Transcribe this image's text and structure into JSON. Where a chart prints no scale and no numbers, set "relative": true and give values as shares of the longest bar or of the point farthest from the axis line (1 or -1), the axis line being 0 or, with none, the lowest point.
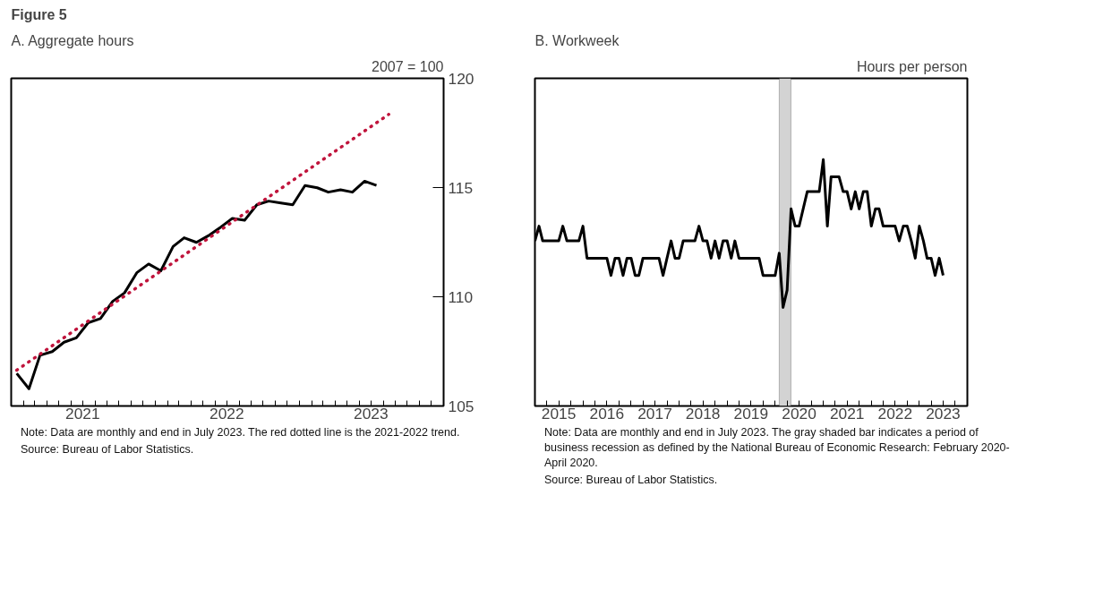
{
  "chart_data": [
    {
      "type": "line",
      "title": "Figure 5",
      "subtitle": "A. Aggregate hours",
      "ylabel": "2007 = 100",
      "series": [
        {
          "color": "#000000",
          "line_style": "solid",
          "x": [
            "2021-01-15",
            "2021-02-15",
            "2021-03-15",
            "2021-04-15",
            "2021-05-15",
            "2021-06-15",
            "2021-07-15",
            "2021-08-15",
            "2021-09-15",
            "2021-10-15",
            "2021-11-15",
            "2021-12-15",
            "2022-01-15",
            "2022-02-15",
            "2022-03-15",
            "2022-04-15",
            "2022-05-15",
            "2022-06-15",
            "2022-07-15",
            "2022-08-15",
            "2022-09-15",
            "2022-10-15",
            "2022-11-15",
            "2022-12-15",
            "2023-01-15",
            "2023-02-15",
            "2023-03-15",
            "2023-04-15",
            "2023-05-15",
            "2023-06-15",
            "2023-07-15"
          ],
          "values": [
            106.49,
            105.79,
            107.32,
            107.49,
            107.92,
            108.12,
            108.81,
            109.0,
            109.79,
            110.18,
            111.1,
            111.5,
            111.19,
            112.3,
            112.7,
            112.49,
            112.79,
            113.18,
            113.59,
            113.5,
            114.21,
            114.38,
            114.29,
            114.21,
            115.09,
            114.99,
            114.79,
            114.9,
            114.79,
            115.29,
            115.1
          ]
        },
        {
          "color": "#c0143c",
          "line_style": "dotted",
          "x": [
            "2021-01-15",
            "2023-08-15"
          ],
          "values": [
            106.64,
            118.35
          ]
        }
      ],
      "xlim": [
        "2021-01-01",
        "2024-01-01"
      ],
      "ylim": [
        105,
        120
      ],
      "yticks": [
        105,
        110,
        115,
        120
      ],
      "xticks": [
        {
          "value": "2021-01-01",
          "label": null
        },
        {
          "value": "2021-02-01",
          "label": null
        },
        {
          "value": "2021-03-01",
          "label": null
        },
        {
          "value": "2021-04-01",
          "label": null
        },
        {
          "value": "2021-05-01",
          "label": null
        },
        {
          "value": "2021-06-01",
          "label": null
        },
        {
          "value": "2021-07-01",
          "label": "2021"
        },
        {
          "value": "2021-08-01",
          "label": null
        },
        {
          "value": "2021-09-01",
          "label": null
        },
        {
          "value": "2021-10-01",
          "label": null
        },
        {
          "value": "2021-11-01",
          "label": null
        },
        {
          "value": "2021-12-01",
          "label": null
        },
        {
          "value": "2022-01-01",
          "label": null
        },
        {
          "value": "2022-02-01",
          "label": null
        },
        {
          "value": "2022-03-01",
          "label": null
        },
        {
          "value": "2022-04-01",
          "label": null
        },
        {
          "value": "2022-05-01",
          "label": null
        },
        {
          "value": "2022-06-01",
          "label": null
        },
        {
          "value": "2022-07-01",
          "label": "2022"
        },
        {
          "value": "2022-08-01",
          "label": null
        },
        {
          "value": "2022-09-01",
          "label": null
        },
        {
          "value": "2022-10-01",
          "label": null
        },
        {
          "value": "2022-11-01",
          "label": null
        },
        {
          "value": "2022-12-01",
          "label": null
        },
        {
          "value": "2023-01-01",
          "label": null
        },
        {
          "value": "2023-02-01",
          "label": null
        },
        {
          "value": "2023-03-01",
          "label": null
        },
        {
          "value": "2023-04-01",
          "label": null
        },
        {
          "value": "2023-05-01",
          "label": null
        },
        {
          "value": "2023-06-01",
          "label": null
        },
        {
          "value": "2023-07-01",
          "label": "2023"
        },
        {
          "value": "2023-08-01",
          "label": null
        },
        {
          "value": "2023-09-01",
          "label": null
        },
        {
          "value": "2023-10-01",
          "label": null
        },
        {
          "value": "2023-11-01",
          "label": null
        },
        {
          "value": "2023-12-01",
          "label": null
        },
        {
          "value": "2024-01-01",
          "label": null
        }
      ],
      "marker": "none",
      "annotations": [
        "Note: Data are monthly and end in July 2023. The red dotted line is the 2021-2022 trend.",
        "Source: Bureau of Labor Statistics."
      ]
    },
    {
      "type": "line",
      "title": "B. Workweek",
      "ylabel": "Hours per person",
      "relative": true,
      "x": [
        "2015-01",
        "2015-02",
        "2015-03",
        "2015-04",
        "2015-05",
        "2015-06",
        "2015-07",
        "2015-08",
        "2015-09",
        "2015-10",
        "2015-11",
        "2015-12",
        "2016-01",
        "2016-02",
        "2016-03",
        "2016-04",
        "2016-05",
        "2016-06",
        "2016-07",
        "2016-08",
        "2016-09",
        "2016-10",
        "2016-11",
        "2016-12",
        "2017-01",
        "2017-02",
        "2017-03",
        "2017-04",
        "2017-05",
        "2017-06",
        "2017-07",
        "2017-08",
        "2017-09",
        "2017-10",
        "2017-11",
        "2017-12",
        "2018-01",
        "2018-02",
        "2018-03",
        "2018-04",
        "2018-05",
        "2018-06",
        "2018-07",
        "2018-08",
        "2018-09",
        "2018-10",
        "2018-11",
        "2018-12",
        "2019-01",
        "2019-02",
        "2019-03",
        "2019-04",
        "2019-05",
        "2019-06",
        "2019-07",
        "2019-08",
        "2019-09",
        "2019-10",
        "2019-11",
        "2019-12",
        "2020-01",
        "2020-02",
        "2020-03",
        "2020-04",
        "2020-05",
        "2020-06",
        "2020-07",
        "2020-08",
        "2020-09",
        "2020-10",
        "2020-11",
        "2020-12",
        "2021-01",
        "2021-02",
        "2021-03",
        "2021-04",
        "2021-05",
        "2021-06",
        "2021-07",
        "2021-08",
        "2021-09",
        "2021-10",
        "2021-11",
        "2021-12",
        "2022-01",
        "2022-02",
        "2022-03",
        "2022-04",
        "2022-05",
        "2022-06",
        "2022-07",
        "2022-08",
        "2022-09",
        "2022-10",
        "2022-11",
        "2022-12",
        "2023-01",
        "2023-02",
        "2023-03",
        "2023-04",
        "2023-05",
        "2023-06",
        "2023-07"
      ],
      "series": [
        {
          "color": "#000000",
          "line_style": "solid",
          "values": [
            0.67,
            0.73,
            0.67,
            0.67,
            0.67,
            0.67,
            0.67,
            0.73,
            0.67,
            0.67,
            0.67,
            0.67,
            0.73,
            0.6,
            0.6,
            0.6,
            0.6,
            0.6,
            0.6,
            0.53,
            0.6,
            0.6,
            0.53,
            0.6,
            0.6,
            0.53,
            0.53,
            0.6,
            0.6,
            0.6,
            0.6,
            0.6,
            0.53,
            0.6,
            0.67,
            0.6,
            0.6,
            0.67,
            0.67,
            0.67,
            0.67,
            0.73,
            0.67,
            0.67,
            0.6,
            0.67,
            0.6,
            0.67,
            0.67,
            0.6,
            0.67,
            0.6,
            0.6,
            0.6,
            0.6,
            0.6,
            0.6,
            0.53,
            0.53,
            0.53,
            0.53,
            0.62,
            0.4,
            0.47,
            0.8,
            0.73,
            0.73,
            0.8,
            0.87,
            0.87,
            0.87,
            0.87,
            1.0,
            0.73,
            0.93,
            0.93,
            0.93,
            0.87,
            0.87,
            0.8,
            0.87,
            0.8,
            0.87,
            0.87,
            0.73,
            0.8,
            0.8,
            0.73,
            0.73,
            0.73,
            0.73,
            0.67,
            0.73,
            0.73,
            0.67,
            0.6,
            0.73,
            0.67,
            0.6,
            0.6,
            0.53,
            0.6,
            0.53
          ]
        }
      ],
      "xlim": [
        "2015-01-01",
        "2024-01-01"
      ],
      "xticks": [
        {
          "value": "2015-01-01",
          "label": null
        },
        {
          "value": "2015-04-01",
          "label": null
        },
        {
          "value": "2015-07-01",
          "label": "2015"
        },
        {
          "value": "2015-10-01",
          "label": null
        },
        {
          "value": "2016-01-01",
          "label": null
        },
        {
          "value": "2016-04-01",
          "label": null
        },
        {
          "value": "2016-07-01",
          "label": "2016"
        },
        {
          "value": "2016-10-01",
          "label": null
        },
        {
          "value": "2017-01-01",
          "label": null
        },
        {
          "value": "2017-04-01",
          "label": null
        },
        {
          "value": "2017-07-01",
          "label": "2017"
        },
        {
          "value": "2017-10-01",
          "label": null
        },
        {
          "value": "2018-01-01",
          "label": null
        },
        {
          "value": "2018-04-01",
          "label": null
        },
        {
          "value": "2018-07-01",
          "label": "2018"
        },
        {
          "value": "2018-10-01",
          "label": null
        },
        {
          "value": "2019-01-01",
          "label": null
        },
        {
          "value": "2019-04-01",
          "label": null
        },
        {
          "value": "2019-07-01",
          "label": "2019"
        },
        {
          "value": "2019-10-01",
          "label": null
        },
        {
          "value": "2020-01-01",
          "label": null
        },
        {
          "value": "2020-04-01",
          "label": null
        },
        {
          "value": "2020-07-01",
          "label": "2020"
        },
        {
          "value": "2020-10-01",
          "label": null
        },
        {
          "value": "2021-01-01",
          "label": null
        },
        {
          "value": "2021-04-01",
          "label": null
        },
        {
          "value": "2021-07-01",
          "label": "2021"
        },
        {
          "value": "2021-10-01",
          "label": null
        },
        {
          "value": "2022-01-01",
          "label": null
        },
        {
          "value": "2022-04-01",
          "label": null
        },
        {
          "value": "2022-07-01",
          "label": "2022"
        },
        {
          "value": "2022-10-01",
          "label": null
        },
        {
          "value": "2023-01-01",
          "label": null
        },
        {
          "value": "2023-04-01",
          "label": null
        },
        {
          "value": "2023-07-01",
          "label": "2023"
        },
        {
          "value": "2023-10-01",
          "label": null
        },
        {
          "value": "2024-01-01",
          "label": null
        }
      ],
      "bands": [
        {
          "axis": "x",
          "from": "2020-02-01",
          "to": "2020-04-30",
          "label": null,
          "color": "#d3d3d3"
        }
      ],
      "marker": "none",
      "annotations": [
        "Note: Data are monthly and end in July 2023. The gray shaded bar indicates a period of business recession as defined by the National Bureau of Economic Research: February 2020-April 2020.",
        "Source: Bureau of Labor Statistics."
      ]
    }
  ]
}
